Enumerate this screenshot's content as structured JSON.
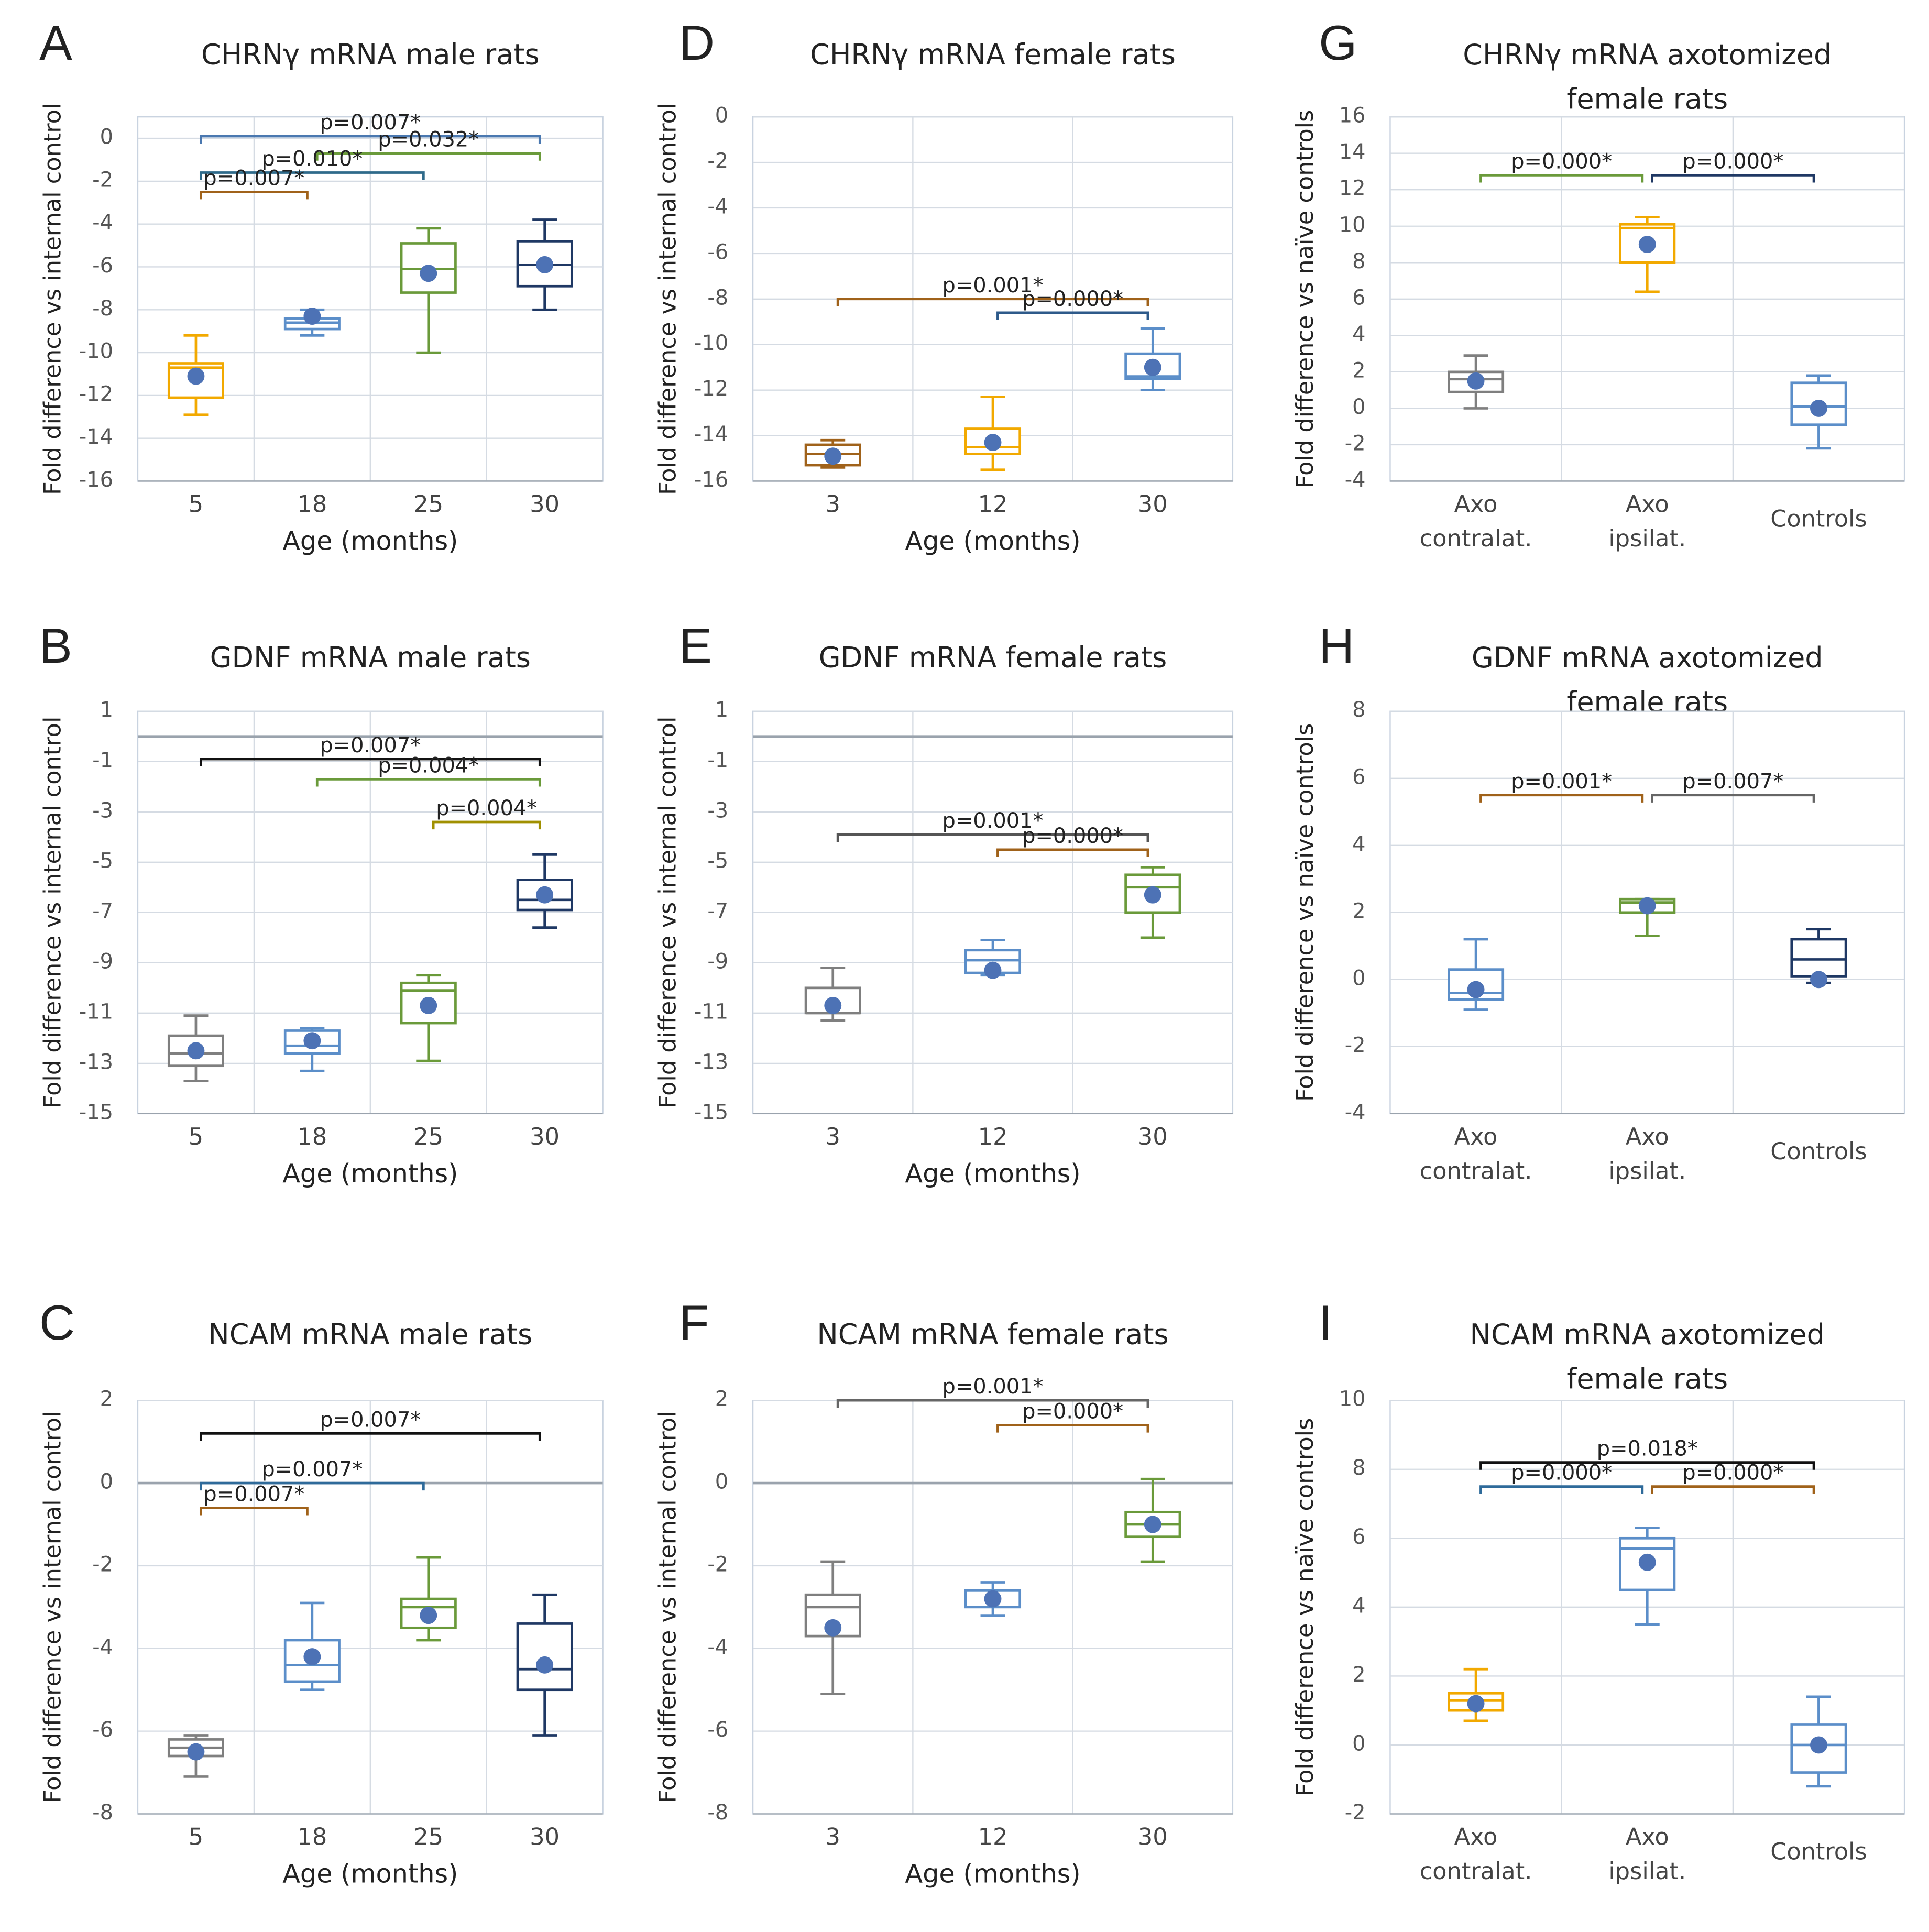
{
  "chart_data": [
    {
      "type": "box",
      "panel": "A",
      "title": "CHRNγ mRNA male rats",
      "ylabel": "Fold difference vs internal control",
      "xlabel": "Age (months)",
      "categories": [
        "5",
        "18",
        "25",
        "30"
      ],
      "ylim": [
        -16,
        1
      ],
      "yticks": [
        0,
        -2,
        -4,
        -6,
        -8,
        -10,
        -12,
        -14,
        -16
      ],
      "boxes": [
        {
          "color": "#f2a900",
          "min": -12.9,
          "q1": -12.1,
          "median": -10.7,
          "q3": -10.5,
          "max": -9.2,
          "mean": -11.1
        },
        {
          "color": "#5b8ec9",
          "min": -9.2,
          "q1": -8.9,
          "median": -8.6,
          "q3": -8.4,
          "max": -8.0,
          "mean": -8.3
        },
        {
          "color": "#6a9a3a",
          "min": -10.0,
          "q1": -7.2,
          "median": -6.1,
          "q3": -4.9,
          "max": -4.2,
          "mean": -6.3
        },
        {
          "color": "#1f3864",
          "min": -8.0,
          "q1": -6.9,
          "median": -5.9,
          "q3": -4.8,
          "max": -3.8,
          "mean": -5.9
        }
      ],
      "brackets": [
        {
          "from": 0,
          "to": 3,
          "y": 0.1,
          "label": "p=0.007*",
          "color": "#4a78b0"
        },
        {
          "from": 1,
          "to": 3,
          "y": -0.7,
          "label": "p=0.032*",
          "color": "#6a9a3a"
        },
        {
          "from": 0,
          "to": 2,
          "y": -1.6,
          "label": "p=0.010*",
          "color": "#2e6a8a"
        },
        {
          "from": 0,
          "to": 1,
          "y": -2.5,
          "label": "p=0.007*",
          "color": "#a0621a"
        }
      ]
    },
    {
      "type": "box",
      "panel": "D",
      "title": "CHRNγ mRNA female rats",
      "ylabel": "Fold difference vs internal control",
      "xlabel": "Age (months)",
      "categories": [
        "3",
        "12",
        "30"
      ],
      "ylim": [
        -16,
        0
      ],
      "yticks": [
        0,
        -2,
        -4,
        -6,
        -8,
        -10,
        -12,
        -14,
        -16
      ],
      "boxes": [
        {
          "color": "#a0621a",
          "min": -15.4,
          "q1": -15.3,
          "median": -14.8,
          "q3": -14.4,
          "max": -14.2,
          "mean": -14.9
        },
        {
          "color": "#f2a900",
          "min": -15.5,
          "q1": -14.8,
          "median": -14.5,
          "q3": -13.7,
          "max": -12.3,
          "mean": -14.3
        },
        {
          "color": "#5b8ec9",
          "min": -12.0,
          "q1": -11.5,
          "median": -11.4,
          "q3": -10.4,
          "max": -9.3,
          "mean": -11.0
        }
      ],
      "brackets": [
        {
          "from": 0,
          "to": 2,
          "y": -8.0,
          "label": "p=0.001*",
          "color": "#a0621a"
        },
        {
          "from": 1,
          "to": 2,
          "y": -8.6,
          "label": "p=0.000*",
          "color": "#2e5a8a"
        }
      ]
    },
    {
      "type": "box",
      "panel": "G",
      "title": "CHRNγ mRNA axotomized female rats",
      "ylabel": "Fold difference vs naïve controls",
      "categories": [
        "Axo contralat.",
        "Axo ipsilat.",
        "Controls"
      ],
      "ylim": [
        -4,
        16
      ],
      "yticks": [
        -4,
        -2,
        0,
        2,
        4,
        6,
        8,
        10,
        12,
        14,
        16
      ],
      "boxes": [
        {
          "color": "#7f7f7f",
          "min": 0.0,
          "q1": 0.9,
          "median": 1.6,
          "q3": 2.0,
          "max": 2.9,
          "mean": 1.5
        },
        {
          "color": "#f2a900",
          "min": 6.4,
          "q1": 8.0,
          "median": 9.9,
          "q3": 10.1,
          "max": 10.5,
          "mean": 9.0
        },
        {
          "color": "#5b8ec9",
          "min": -2.2,
          "q1": -0.9,
          "median": 0.1,
          "q3": 1.4,
          "max": 1.8,
          "mean": 0.0
        }
      ],
      "brackets": [
        {
          "from": 0,
          "to": 1,
          "y": 12.8,
          "label": "p=0.000*",
          "color": "#6a9a3a"
        },
        {
          "from": 1,
          "to": 2,
          "y": 12.8,
          "label": "p=0.000*",
          "color": "#1f3864"
        }
      ]
    },
    {
      "type": "box",
      "panel": "B",
      "title": "GDNF mRNA male rats",
      "ylabel": "Fold difference vs internal control",
      "xlabel": "Age (months)",
      "categories": [
        "5",
        "18",
        "25",
        "30"
      ],
      "ylim": [
        -15,
        1
      ],
      "yticks": [
        1,
        -1,
        -3,
        -5,
        -7,
        -9,
        -11,
        -13,
        -15
      ],
      "ref_line": 0,
      "boxes": [
        {
          "color": "#7f7f7f",
          "min": -13.7,
          "q1": -13.1,
          "median": -12.6,
          "q3": -11.9,
          "max": -11.1,
          "mean": -12.5
        },
        {
          "color": "#5b8ec9",
          "min": -13.3,
          "q1": -12.6,
          "median": -12.3,
          "q3": -11.7,
          "max": -11.6,
          "mean": -12.1
        },
        {
          "color": "#6a9a3a",
          "min": -12.9,
          "q1": -11.4,
          "median": -10.1,
          "q3": -9.8,
          "max": -9.5,
          "mean": -10.7
        },
        {
          "color": "#1f3864",
          "min": -7.6,
          "q1": -6.9,
          "median": -6.5,
          "q3": -5.7,
          "max": -4.7,
          "mean": -6.3
        }
      ],
      "brackets": [
        {
          "from": 0,
          "to": 3,
          "y": -0.9,
          "label": "p=0.007*",
          "color": "#111111"
        },
        {
          "from": 1,
          "to": 3,
          "y": -1.7,
          "label": "p=0.004*",
          "color": "#6a9a3a"
        },
        {
          "from": 2,
          "to": 3,
          "y": -3.4,
          "label": "p=0.004*",
          "color": "#a09000"
        }
      ]
    },
    {
      "type": "box",
      "panel": "E",
      "title": "GDNF mRNA female rats",
      "ylabel": "Fold difference vs internal control",
      "xlabel": "Age (months)",
      "categories": [
        "3",
        "12",
        "30"
      ],
      "ylim": [
        -15,
        1
      ],
      "yticks": [
        1,
        -1,
        -3,
        -5,
        -7,
        -9,
        -11,
        -13,
        -15
      ],
      "ref_line": 0,
      "boxes": [
        {
          "color": "#7f7f7f",
          "min": -11.3,
          "q1": -11.0,
          "median": -11.0,
          "q3": -10.0,
          "max": -9.2,
          "mean": -10.7
        },
        {
          "color": "#5b8ec9",
          "min": -9.5,
          "q1": -9.4,
          "median": -8.9,
          "q3": -8.5,
          "max": -8.1,
          "mean": -9.3
        },
        {
          "color": "#6a9a3a",
          "min": -8.0,
          "q1": -7.0,
          "median": -6.0,
          "q3": -5.5,
          "max": -5.2,
          "mean": -6.3
        }
      ],
      "brackets": [
        {
          "from": 0,
          "to": 2,
          "y": -3.9,
          "label": "p=0.001*",
          "color": "#555555"
        },
        {
          "from": 1,
          "to": 2,
          "y": -4.5,
          "label": "p=0.000*",
          "color": "#a0621a"
        }
      ]
    },
    {
      "type": "box",
      "panel": "H",
      "title": "GDNF mRNA axotomized female rats",
      "ylabel": "Fold difference vs naïve controls",
      "categories": [
        "Axo contralat.",
        "Axo ipsilat.",
        "Controls"
      ],
      "ylim": [
        -4,
        8
      ],
      "yticks": [
        -4,
        -2,
        0,
        2,
        4,
        6,
        8
      ],
      "boxes": [
        {
          "color": "#5b8ec9",
          "min": -0.9,
          "q1": -0.6,
          "median": -0.4,
          "q3": 0.3,
          "max": 1.2,
          "mean": -0.3
        },
        {
          "color": "#6a9a3a",
          "min": 1.3,
          "q1": 2.0,
          "median": 2.3,
          "q3": 2.4,
          "max": 2.4,
          "mean": 2.2
        },
        {
          "color": "#1f3864",
          "min": -0.1,
          "q1": 0.1,
          "median": 0.6,
          "q3": 1.2,
          "max": 1.5,
          "mean": 0.0
        }
      ],
      "brackets": [
        {
          "from": 0,
          "to": 1,
          "y": 5.5,
          "label": "p=0.001*",
          "color": "#a0621a"
        },
        {
          "from": 1,
          "to": 2,
          "y": 5.5,
          "label": "p=0.007*",
          "color": "#666666"
        }
      ]
    },
    {
      "type": "box",
      "panel": "C",
      "title": "NCAM mRNA male rats",
      "ylabel": "Fold difference vs internal control",
      "xlabel": "Age (months)",
      "categories": [
        "5",
        "18",
        "25",
        "30"
      ],
      "ylim": [
        -8,
        2
      ],
      "yticks": [
        2,
        0,
        -2,
        -4,
        -6,
        -8
      ],
      "ref_line": 0,
      "boxes": [
        {
          "color": "#7f7f7f",
          "min": -7.1,
          "q1": -6.6,
          "median": -6.4,
          "q3": -6.2,
          "max": -6.1,
          "mean": -6.5
        },
        {
          "color": "#5b8ec9",
          "min": -5.0,
          "q1": -4.8,
          "median": -4.4,
          "q3": -3.8,
          "max": -2.9,
          "mean": -4.2
        },
        {
          "color": "#6a9a3a",
          "min": -3.8,
          "q1": -3.5,
          "median": -3.0,
          "q3": -2.8,
          "max": -1.8,
          "mean": -3.2
        },
        {
          "color": "#1f3864",
          "min": -6.1,
          "q1": -5.0,
          "median": -4.5,
          "q3": -3.4,
          "max": -2.7,
          "mean": -4.4
        }
      ],
      "brackets": [
        {
          "from": 0,
          "to": 3,
          "y": 1.2,
          "label": "p=0.007*",
          "color": "#111111"
        },
        {
          "from": 0,
          "to": 2,
          "y": 0.0,
          "label": "p=0.007*",
          "color": "#2e6a9a"
        },
        {
          "from": 0,
          "to": 1,
          "y": -0.6,
          "label": "p=0.007*",
          "color": "#a0621a"
        }
      ]
    },
    {
      "type": "box",
      "panel": "F",
      "title": "NCAM mRNA female rats",
      "ylabel": "Fold difference vs internal control",
      "xlabel": "Age (months)",
      "categories": [
        "3",
        "12",
        "30"
      ],
      "ylim": [
        -8,
        2
      ],
      "yticks": [
        2,
        0,
        -2,
        -4,
        -6,
        -8
      ],
      "ref_line": 0,
      "boxes": [
        {
          "color": "#7f7f7f",
          "min": -5.1,
          "q1": -3.7,
          "median": -3.0,
          "q3": -2.7,
          "max": -1.9,
          "mean": -3.5
        },
        {
          "color": "#5b8ec9",
          "min": -3.2,
          "q1": -3.0,
          "median": -2.6,
          "q3": -2.6,
          "max": -2.4,
          "mean": -2.8
        },
        {
          "color": "#6a9a3a",
          "min": -1.9,
          "q1": -1.3,
          "median": -1.0,
          "q3": -0.7,
          "max": 0.1,
          "mean": -1.0
        }
      ],
      "brackets": [
        {
          "from": 0,
          "to": 2,
          "y": 2.0,
          "label": "p=0.001*",
          "color": "#666666"
        },
        {
          "from": 1,
          "to": 2,
          "y": 1.4,
          "label": "p=0.000*",
          "color": "#a0621a"
        }
      ]
    },
    {
      "type": "box",
      "panel": "I",
      "title": "NCAM mRNA axotomized female rats",
      "ylabel": "Fold difference vs naïve controls",
      "categories": [
        "Axo contralat.",
        "Axo ipsilat.",
        "Controls"
      ],
      "ylim": [
        -2,
        10
      ],
      "yticks": [
        -2,
        0,
        2,
        4,
        6,
        8,
        10
      ],
      "boxes": [
        {
          "color": "#f2a900",
          "min": 0.7,
          "q1": 1.0,
          "median": 1.3,
          "q3": 1.5,
          "max": 2.2,
          "mean": 1.2
        },
        {
          "color": "#5b8ec9",
          "min": 3.5,
          "q1": 4.5,
          "median": 5.7,
          "q3": 6.0,
          "max": 6.3,
          "mean": 5.3
        },
        {
          "color": "#5b8ec9",
          "min": -1.2,
          "q1": -0.8,
          "median": 0.0,
          "q3": 0.6,
          "max": 1.4,
          "mean": 0.0
        }
      ],
      "brackets": [
        {
          "from": 0,
          "to": 2,
          "y": 8.2,
          "label": "p=0.018*",
          "color": "#111111"
        },
        {
          "from": 0,
          "to": 1,
          "y": 7.5,
          "label": "p=0.000*",
          "color": "#2e6a9a"
        },
        {
          "from": 1,
          "to": 2,
          "y": 7.5,
          "label": "p=0.000*",
          "color": "#a0621a"
        }
      ]
    }
  ]
}
